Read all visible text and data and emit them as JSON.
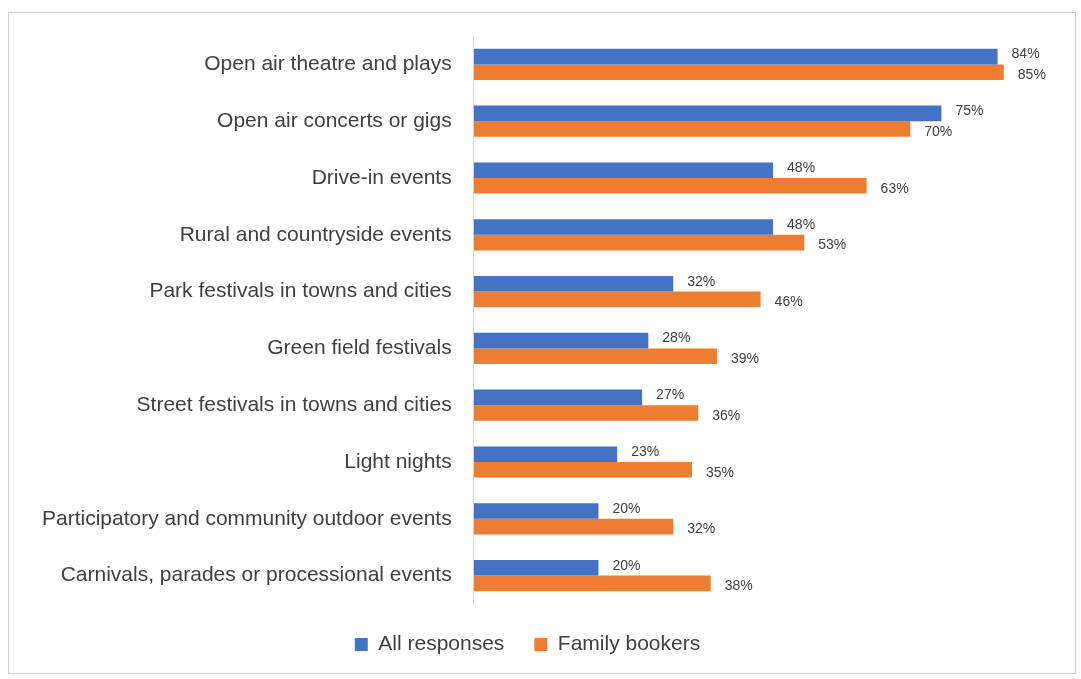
{
  "chart_data": {
    "type": "bar",
    "orientation": "horizontal",
    "categories": [
      "Open air theatre and plays",
      "Open air concerts or gigs",
      "Drive-in events",
      "Rural and countryside events",
      "Park festivals in towns and cities",
      "Green field festivals",
      "Street festivals in towns and cities",
      "Light nights",
      "Participatory and community outdoor events",
      "Carnivals, parades or processional events"
    ],
    "series": [
      {
        "name": "All responses",
        "color": "#4472c4",
        "values": [
          84,
          75,
          48,
          48,
          32,
          28,
          27,
          23,
          20,
          20
        ],
        "value_labels": [
          "84%",
          "75%",
          "48%",
          "48%",
          "32%",
          "28%",
          "27%",
          "23%",
          "20%",
          "20%"
        ]
      },
      {
        "name": "Family bookers",
        "color": "#ed7d31",
        "values": [
          85,
          70,
          63,
          53,
          46,
          39,
          36,
          35,
          32,
          38
        ],
        "value_labels": [
          "85%",
          "70%",
          "63%",
          "53%",
          "46%",
          "39%",
          "36%",
          "35%",
          "32%",
          "38%"
        ]
      }
    ],
    "tick_labels": "y",
    "grid": false,
    "legend": "bottom"
  }
}
